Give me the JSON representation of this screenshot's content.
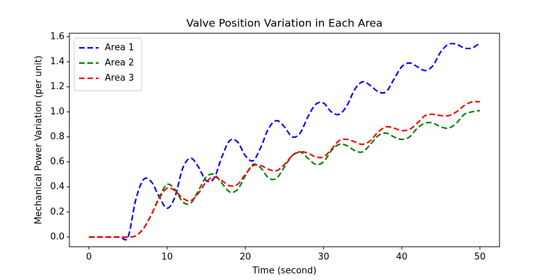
{
  "chart_data": {
    "type": "line",
    "title": "Valve Position Variation in Each Area",
    "x_label": "Time (second)",
    "y_label": "Mechanical Power Variation (per unit)",
    "x": [
      0,
      1,
      2,
      3,
      4,
      5,
      6,
      7,
      8,
      9,
      10,
      11,
      12,
      13,
      14,
      15,
      16,
      17,
      18,
      19,
      20,
      21,
      22,
      23,
      24,
      25,
      26,
      27,
      28,
      29,
      30,
      31,
      32,
      33,
      34,
      35,
      36,
      37,
      38,
      39,
      40,
      41,
      42,
      43,
      44,
      45,
      46,
      47,
      48,
      49,
      50
    ],
    "series": [
      {
        "name": "Area 1",
        "color": "#0000ff",
        "values": [
          0,
          0,
          0,
          0,
          0,
          0,
          0.3,
          0.46,
          0.44,
          0.32,
          0.23,
          0.32,
          0.55,
          0.63,
          0.56,
          0.45,
          0.47,
          0.64,
          0.77,
          0.76,
          0.65,
          0.61,
          0.72,
          0.87,
          0.93,
          0.88,
          0.8,
          0.83,
          0.96,
          1.06,
          1.07,
          1.0,
          0.98,
          1.05,
          1.18,
          1.24,
          1.21,
          1.16,
          1.16,
          1.26,
          1.36,
          1.39,
          1.36,
          1.33,
          1.37,
          1.48,
          1.54,
          1.54,
          1.51,
          1.51,
          1.55
        ]
      },
      {
        "name": "Area 2",
        "color": "#008000",
        "values": [
          0,
          0,
          0,
          0,
          0,
          0,
          0.01,
          0.07,
          0.18,
          0.32,
          0.42,
          0.38,
          0.28,
          0.27,
          0.37,
          0.48,
          0.5,
          0.43,
          0.36,
          0.38,
          0.49,
          0.58,
          0.55,
          0.47,
          0.47,
          0.56,
          0.65,
          0.68,
          0.63,
          0.58,
          0.6,
          0.69,
          0.74,
          0.73,
          0.69,
          0.68,
          0.74,
          0.81,
          0.83,
          0.8,
          0.78,
          0.8,
          0.87,
          0.91,
          0.91,
          0.88,
          0.87,
          0.91,
          0.98,
          1.0,
          1.01
        ]
      },
      {
        "name": "Area 3",
        "color": "#ff0000",
        "values": [
          0,
          0,
          0,
          0,
          0,
          0,
          0.01,
          0.07,
          0.18,
          0.31,
          0.39,
          0.37,
          0.31,
          0.29,
          0.35,
          0.44,
          0.48,
          0.45,
          0.41,
          0.42,
          0.5,
          0.57,
          0.57,
          0.54,
          0.53,
          0.58,
          0.65,
          0.68,
          0.67,
          0.64,
          0.64,
          0.7,
          0.77,
          0.78,
          0.76,
          0.74,
          0.77,
          0.84,
          0.88,
          0.87,
          0.85,
          0.86,
          0.91,
          0.97,
          0.98,
          0.97,
          0.97,
          1.0,
          1.05,
          1.08,
          1.08
        ]
      }
    ],
    "xlim": [
      -2.5,
      52.5
    ],
    "xticks": [
      0,
      10,
      20,
      30,
      40,
      50
    ],
    "ylim": [
      -0.0775,
      1.6275
    ],
    "yticks": [
      {
        "value": 0,
        "label": "0.0"
      },
      0.2,
      0.4,
      0.6,
      0.8,
      {
        "value": 1,
        "label": "1.0"
      },
      1.2,
      1.4,
      1.6
    ],
    "legend": "upper left",
    "line_style": "dashed"
  }
}
